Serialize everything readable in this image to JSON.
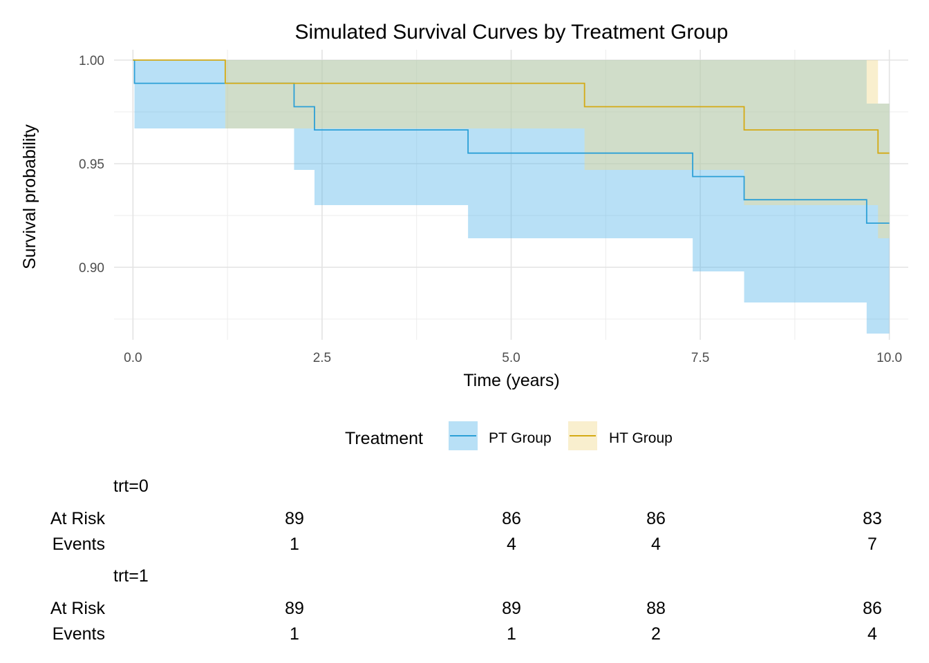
{
  "chart_data": {
    "type": "line",
    "subtype": "kaplan-meier step curves with confidence bands",
    "title": "Simulated Survival Curves by Treatment Group",
    "xlabel": "Time (years)",
    "ylabel": "Survival probability",
    "xlim": [
      -0.25,
      10.25
    ],
    "ylim": [
      0.865,
      1.005
    ],
    "xticks": [
      0,
      2.5,
      5,
      7.5,
      10
    ],
    "xtick_labels": [
      "0.0",
      "2.5",
      "5.0",
      "7.5",
      "10.0"
    ],
    "yticks": [
      0.9,
      0.95,
      1.0
    ],
    "ytick_labels": [
      "0.90",
      "0.95",
      "1.00"
    ],
    "grid": true,
    "legend": {
      "title": "Treatment",
      "position": "bottom"
    },
    "series": [
      {
        "name": "PT Group",
        "color": "#2b9fd6",
        "fill_color": "#56B4E9",
        "steps": [
          [
            0,
            1.0
          ],
          [
            0.02,
            0.9888
          ],
          [
            2.13,
            0.9775
          ],
          [
            2.4,
            0.9663
          ],
          [
            4.43,
            0.9551
          ],
          [
            7.4,
            0.9438
          ],
          [
            8.08,
            0.9326
          ],
          [
            9.7,
            0.9213
          ],
          [
            10,
            0.9213
          ]
        ],
        "lower": [
          [
            0,
            1.0
          ],
          [
            0.02,
            0.967
          ],
          [
            2.13,
            0.947
          ],
          [
            2.4,
            0.93
          ],
          [
            4.43,
            0.914
          ],
          [
            7.4,
            0.898
          ],
          [
            8.08,
            0.883
          ],
          [
            9.7,
            0.868
          ],
          [
            10,
            0.868
          ]
        ],
        "upper": [
          [
            0,
            1.0
          ],
          [
            0.02,
            1.0
          ],
          [
            2.13,
            1.0
          ],
          [
            2.4,
            1.0
          ],
          [
            4.43,
            1.0
          ],
          [
            7.4,
            1.0
          ],
          [
            8.08,
            1.0
          ],
          [
            9.7,
            0.979
          ],
          [
            10,
            0.979
          ]
        ]
      },
      {
        "name": "HT Group",
        "color": "#d4aa14",
        "fill_color": "#F0D98A",
        "steps": [
          [
            0,
            1.0
          ],
          [
            1.22,
            0.9888
          ],
          [
            5.97,
            0.9775
          ],
          [
            8.08,
            0.9663
          ],
          [
            9.85,
            0.9551
          ],
          [
            10,
            0.9551
          ]
        ],
        "lower": [
          [
            0,
            1.0
          ],
          [
            1.22,
            0.967
          ],
          [
            5.97,
            0.947
          ],
          [
            8.08,
            0.93
          ],
          [
            9.85,
            0.914
          ],
          [
            10,
            0.914
          ]
        ],
        "upper": [
          [
            0,
            1.0
          ],
          [
            1.22,
            1.0
          ],
          [
            5.97,
            1.0
          ],
          [
            8.08,
            1.0
          ],
          [
            9.85,
            0.979
          ],
          [
            10,
            0.979
          ]
        ]
      }
    ],
    "risk_table": {
      "row_labels": [
        "At Risk",
        "Events"
      ],
      "times": [
        2.0,
        5.0,
        7.0,
        10.0
      ],
      "groups": [
        {
          "label": "trt=0",
          "at_risk": [
            "89",
            "86",
            "86",
            "83"
          ],
          "events": [
            "1",
            "4",
            "4",
            "7"
          ]
        },
        {
          "label": "trt=1",
          "at_risk": [
            "89",
            "89",
            "88",
            "86"
          ],
          "events": [
            "1",
            "1",
            "2",
            "4"
          ]
        }
      ]
    }
  }
}
